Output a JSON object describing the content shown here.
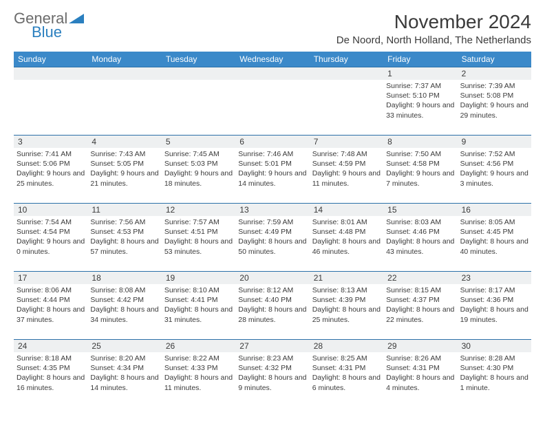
{
  "logo": {
    "general": "General",
    "blue": "Blue"
  },
  "title": "November 2024",
  "location": "De Noord, North Holland, The Netherlands",
  "colors": {
    "header_bg": "#3b89c9",
    "header_text": "#ffffff",
    "divider": "#2a6fa8",
    "daynum_bg": "#eef0f1",
    "text": "#3a3a3a",
    "logo_gray": "#6b6b6b",
    "logo_blue": "#2a7fbf"
  },
  "day_names": [
    "Sunday",
    "Monday",
    "Tuesday",
    "Wednesday",
    "Thursday",
    "Friday",
    "Saturday"
  ],
  "weeks": [
    [
      {
        "day": "",
        "lines": []
      },
      {
        "day": "",
        "lines": []
      },
      {
        "day": "",
        "lines": []
      },
      {
        "day": "",
        "lines": []
      },
      {
        "day": "",
        "lines": []
      },
      {
        "day": "1",
        "lines": [
          "Sunrise: 7:37 AM",
          "Sunset: 5:10 PM",
          "Daylight: 9 hours and 33 minutes."
        ]
      },
      {
        "day": "2",
        "lines": [
          "Sunrise: 7:39 AM",
          "Sunset: 5:08 PM",
          "Daylight: 9 hours and 29 minutes."
        ]
      }
    ],
    [
      {
        "day": "3",
        "lines": [
          "Sunrise: 7:41 AM",
          "Sunset: 5:06 PM",
          "Daylight: 9 hours and 25 minutes."
        ]
      },
      {
        "day": "4",
        "lines": [
          "Sunrise: 7:43 AM",
          "Sunset: 5:05 PM",
          "Daylight: 9 hours and 21 minutes."
        ]
      },
      {
        "day": "5",
        "lines": [
          "Sunrise: 7:45 AM",
          "Sunset: 5:03 PM",
          "Daylight: 9 hours and 18 minutes."
        ]
      },
      {
        "day": "6",
        "lines": [
          "Sunrise: 7:46 AM",
          "Sunset: 5:01 PM",
          "Daylight: 9 hours and 14 minutes."
        ]
      },
      {
        "day": "7",
        "lines": [
          "Sunrise: 7:48 AM",
          "Sunset: 4:59 PM",
          "Daylight: 9 hours and 11 minutes."
        ]
      },
      {
        "day": "8",
        "lines": [
          "Sunrise: 7:50 AM",
          "Sunset: 4:58 PM",
          "Daylight: 9 hours and 7 minutes."
        ]
      },
      {
        "day": "9",
        "lines": [
          "Sunrise: 7:52 AM",
          "Sunset: 4:56 PM",
          "Daylight: 9 hours and 3 minutes."
        ]
      }
    ],
    [
      {
        "day": "10",
        "lines": [
          "Sunrise: 7:54 AM",
          "Sunset: 4:54 PM",
          "Daylight: 9 hours and 0 minutes."
        ]
      },
      {
        "day": "11",
        "lines": [
          "Sunrise: 7:56 AM",
          "Sunset: 4:53 PM",
          "Daylight: 8 hours and 57 minutes."
        ]
      },
      {
        "day": "12",
        "lines": [
          "Sunrise: 7:57 AM",
          "Sunset: 4:51 PM",
          "Daylight: 8 hours and 53 minutes."
        ]
      },
      {
        "day": "13",
        "lines": [
          "Sunrise: 7:59 AM",
          "Sunset: 4:49 PM",
          "Daylight: 8 hours and 50 minutes."
        ]
      },
      {
        "day": "14",
        "lines": [
          "Sunrise: 8:01 AM",
          "Sunset: 4:48 PM",
          "Daylight: 8 hours and 46 minutes."
        ]
      },
      {
        "day": "15",
        "lines": [
          "Sunrise: 8:03 AM",
          "Sunset: 4:46 PM",
          "Daylight: 8 hours and 43 minutes."
        ]
      },
      {
        "day": "16",
        "lines": [
          "Sunrise: 8:05 AM",
          "Sunset: 4:45 PM",
          "Daylight: 8 hours and 40 minutes."
        ]
      }
    ],
    [
      {
        "day": "17",
        "lines": [
          "Sunrise: 8:06 AM",
          "Sunset: 4:44 PM",
          "Daylight: 8 hours and 37 minutes."
        ]
      },
      {
        "day": "18",
        "lines": [
          "Sunrise: 8:08 AM",
          "Sunset: 4:42 PM",
          "Daylight: 8 hours and 34 minutes."
        ]
      },
      {
        "day": "19",
        "lines": [
          "Sunrise: 8:10 AM",
          "Sunset: 4:41 PM",
          "Daylight: 8 hours and 31 minutes."
        ]
      },
      {
        "day": "20",
        "lines": [
          "Sunrise: 8:12 AM",
          "Sunset: 4:40 PM",
          "Daylight: 8 hours and 28 minutes."
        ]
      },
      {
        "day": "21",
        "lines": [
          "Sunrise: 8:13 AM",
          "Sunset: 4:39 PM",
          "Daylight: 8 hours and 25 minutes."
        ]
      },
      {
        "day": "22",
        "lines": [
          "Sunrise: 8:15 AM",
          "Sunset: 4:37 PM",
          "Daylight: 8 hours and 22 minutes."
        ]
      },
      {
        "day": "23",
        "lines": [
          "Sunrise: 8:17 AM",
          "Sunset: 4:36 PM",
          "Daylight: 8 hours and 19 minutes."
        ]
      }
    ],
    [
      {
        "day": "24",
        "lines": [
          "Sunrise: 8:18 AM",
          "Sunset: 4:35 PM",
          "Daylight: 8 hours and 16 minutes."
        ]
      },
      {
        "day": "25",
        "lines": [
          "Sunrise: 8:20 AM",
          "Sunset: 4:34 PM",
          "Daylight: 8 hours and 14 minutes."
        ]
      },
      {
        "day": "26",
        "lines": [
          "Sunrise: 8:22 AM",
          "Sunset: 4:33 PM",
          "Daylight: 8 hours and 11 minutes."
        ]
      },
      {
        "day": "27",
        "lines": [
          "Sunrise: 8:23 AM",
          "Sunset: 4:32 PM",
          "Daylight: 8 hours and 9 minutes."
        ]
      },
      {
        "day": "28",
        "lines": [
          "Sunrise: 8:25 AM",
          "Sunset: 4:31 PM",
          "Daylight: 8 hours and 6 minutes."
        ]
      },
      {
        "day": "29",
        "lines": [
          "Sunrise: 8:26 AM",
          "Sunset: 4:31 PM",
          "Daylight: 8 hours and 4 minutes."
        ]
      },
      {
        "day": "30",
        "lines": [
          "Sunrise: 8:28 AM",
          "Sunset: 4:30 PM",
          "Daylight: 8 hours and 1 minute."
        ]
      }
    ]
  ]
}
